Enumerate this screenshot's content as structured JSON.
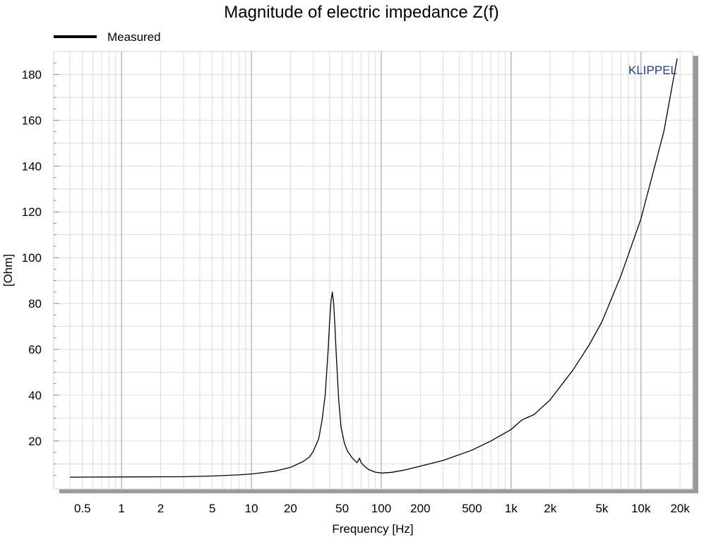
{
  "chart_data": {
    "type": "line",
    "title": "Magnitude of electric impedance Z(f)",
    "xlabel": "Frequency [Hz]",
    "ylabel": "[Ohm]",
    "x_scale": "log",
    "xlim": [
      0.3,
      25000
    ],
    "ylim": [
      -1,
      190
    ],
    "grid": true,
    "legend_placement": "top-left",
    "watermark": "KLIPPEL",
    "x_ticks": [
      {
        "value": 0.5,
        "label": "0.5"
      },
      {
        "value": 1,
        "label": "1"
      },
      {
        "value": 2,
        "label": "2"
      },
      {
        "value": 5,
        "label": "5"
      },
      {
        "value": 10,
        "label": "10"
      },
      {
        "value": 20,
        "label": "20"
      },
      {
        "value": 50,
        "label": "50"
      },
      {
        "value": 100,
        "label": "100"
      },
      {
        "value": 200,
        "label": "200"
      },
      {
        "value": 500,
        "label": "500"
      },
      {
        "value": 1000,
        "label": "1k"
      },
      {
        "value": 2000,
        "label": "2k"
      },
      {
        "value": 5000,
        "label": "5k"
      },
      {
        "value": 10000,
        "label": "10k"
      },
      {
        "value": 20000,
        "label": "20k"
      }
    ],
    "y_ticks": [
      {
        "value": 20,
        "label": "20"
      },
      {
        "value": 40,
        "label": "40"
      },
      {
        "value": 60,
        "label": "60"
      },
      {
        "value": 80,
        "label": "80"
      },
      {
        "value": 100,
        "label": "100"
      },
      {
        "value": 120,
        "label": "120"
      },
      {
        "value": 140,
        "label": "140"
      },
      {
        "value": 160,
        "label": "160"
      },
      {
        "value": 180,
        "label": "180"
      }
    ],
    "series": [
      {
        "name": "Measured",
        "color": "#000000",
        "x": [
          0.4,
          1,
          3,
          5,
          8,
          10,
          15,
          20,
          25,
          28,
          30,
          33,
          35,
          37,
          39,
          40,
          41,
          42,
          43,
          44,
          45,
          47,
          49,
          52,
          55,
          60,
          65,
          68,
          70,
          75,
          80,
          90,
          100,
          120,
          150,
          200,
          300,
          500,
          700,
          1000,
          1200,
          1300,
          1500,
          2000,
          3000,
          4000,
          5000,
          7000,
          10000,
          15000,
          19000
        ],
        "values": [
          4.2,
          4.3,
          4.4,
          4.7,
          5.2,
          5.6,
          6.8,
          8.5,
          11,
          13,
          15.5,
          21,
          29,
          40,
          60,
          72,
          81,
          85,
          80,
          70,
          58,
          38,
          26,
          19,
          15.5,
          12.5,
          10.5,
          12.5,
          10.5,
          8.8,
          7.5,
          6.4,
          6.0,
          6.3,
          7.3,
          9.0,
          11.5,
          16,
          20,
          25,
          29,
          30,
          31.5,
          38,
          51,
          62,
          72,
          92,
          117,
          155,
          187
        ]
      }
    ]
  }
}
